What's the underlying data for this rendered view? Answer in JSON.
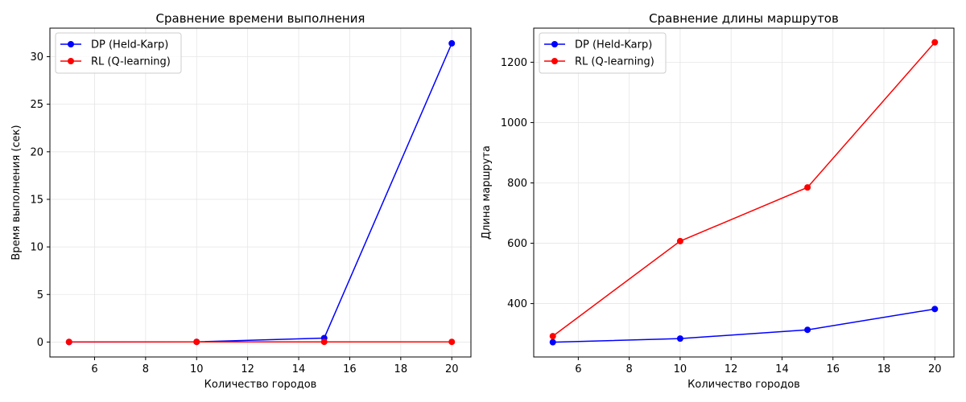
{
  "figure": {
    "background": "#ffffff"
  },
  "chart_data": [
    {
      "type": "line",
      "title": "Сравнение времени выполнения",
      "xlabel": "Количество городов",
      "ylabel": "Время выполнения (сек)",
      "x": [
        5,
        10,
        15,
        20
      ],
      "xlim": [
        4.25,
        20.75
      ],
      "ylim": [
        -1.57,
        33.0
      ],
      "xticks": [
        6,
        8,
        10,
        12,
        14,
        16,
        18,
        20
      ],
      "yticks": [
        0,
        5,
        10,
        15,
        20,
        25,
        30
      ],
      "grid": true,
      "legend_placement": "upper-left",
      "series": [
        {
          "name": "DP (Held-Karp)",
          "color": "#0000ff",
          "values": [
            0.001,
            0.02,
            0.42,
            31.4
          ]
        },
        {
          "name": "RL (Q-learning)",
          "color": "#ff0000",
          "values": [
            0.02,
            0.02,
            0.02,
            0.02
          ]
        }
      ]
    },
    {
      "type": "line",
      "title": "Сравнение длины маршрутов",
      "xlabel": "Количество городов",
      "ylabel": "Длина маршрута",
      "x": [
        5,
        10,
        15,
        20
      ],
      "xlim": [
        4.25,
        20.75
      ],
      "ylim": [
        223,
        1313
      ],
      "xticks": [
        6,
        8,
        10,
        12,
        14,
        16,
        18,
        20
      ],
      "yticks": [
        400,
        600,
        800,
        1000,
        1200
      ],
      "grid": true,
      "legend_placement": "upper-left",
      "series": [
        {
          "name": "DP (Held-Karp)",
          "color": "#0000ff",
          "values": [
            272,
            284,
            313,
            382
          ]
        },
        {
          "name": "RL (Q-learning)",
          "color": "#ff0000",
          "values": [
            292,
            607,
            785,
            1266
          ]
        }
      ]
    }
  ]
}
